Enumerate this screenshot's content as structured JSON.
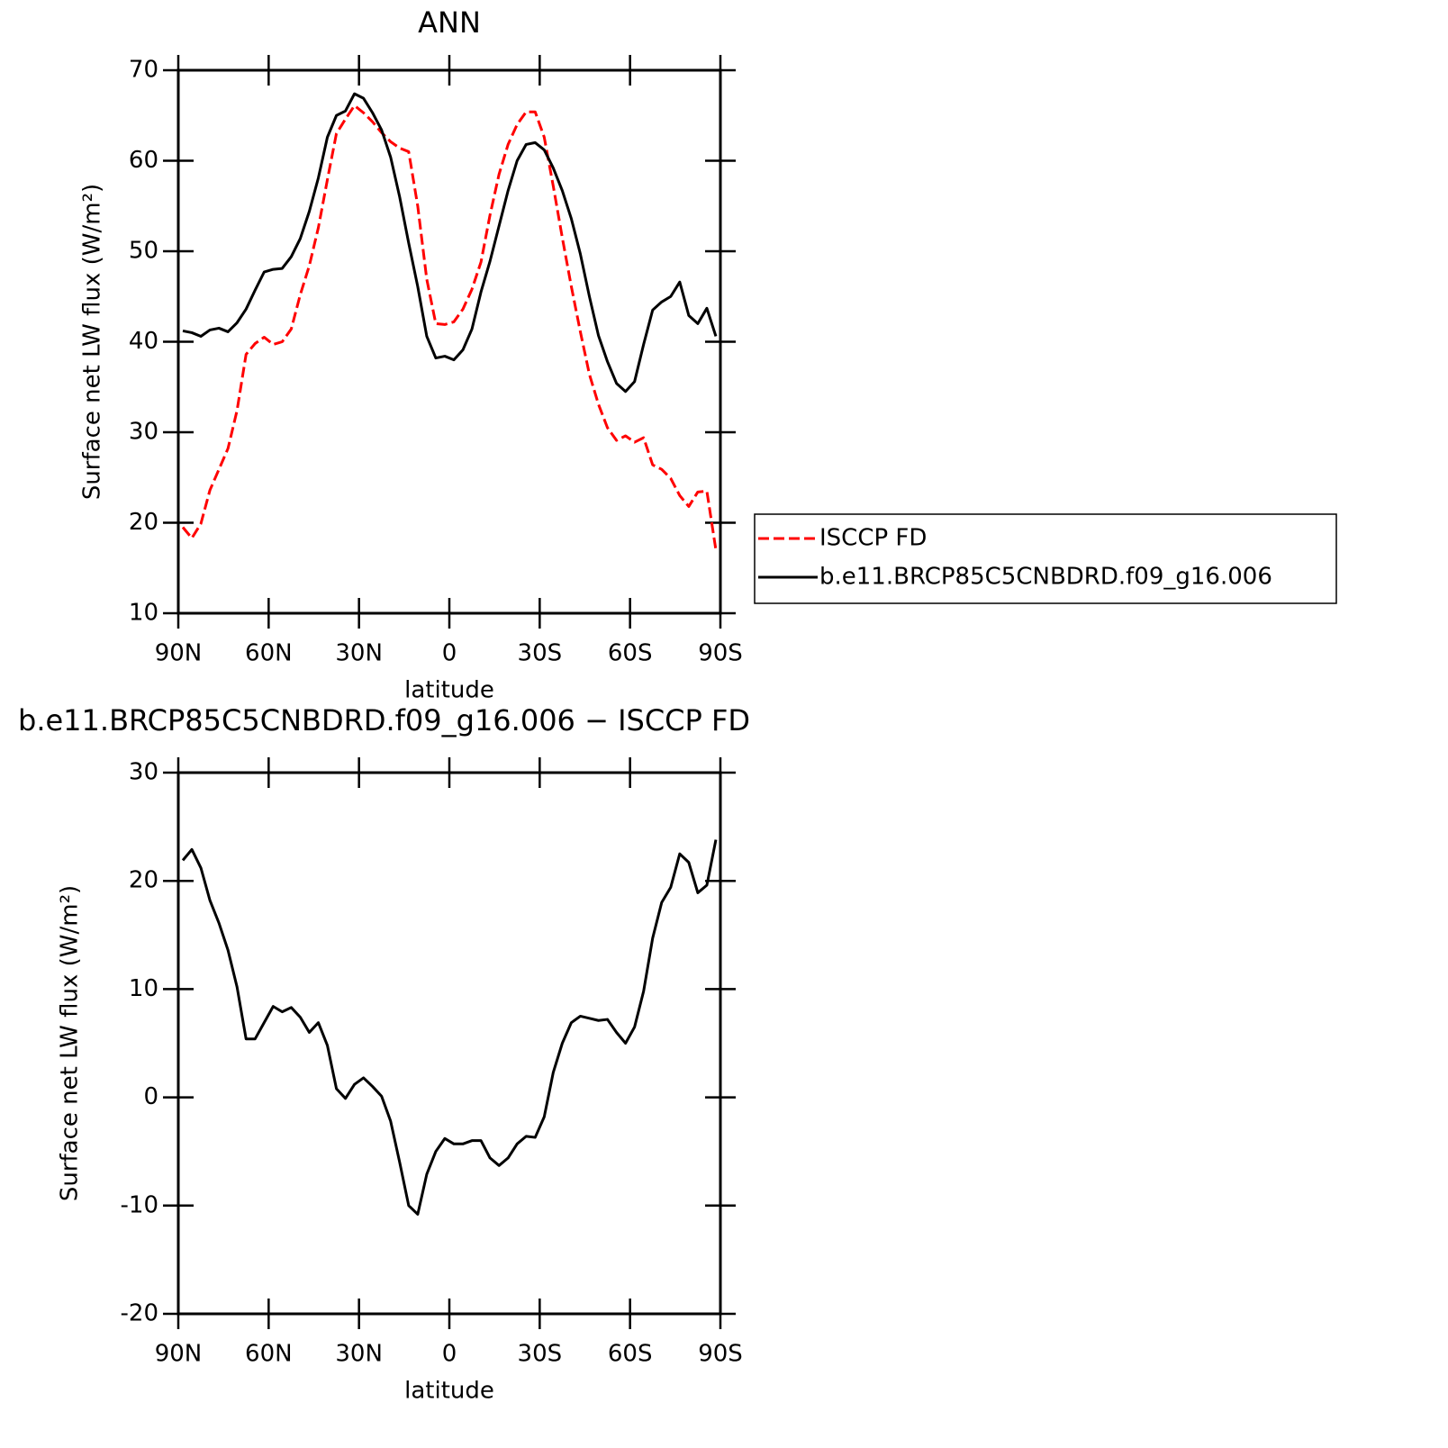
{
  "chart_data": [
    {
      "type": "line",
      "title": "ANN",
      "xlabel": "latitude",
      "ylabel": "Surface net LW flux (W/m²)",
      "x": [
        88.5,
        85.5,
        82.5,
        79.5,
        76.5,
        73.5,
        70.5,
        67.5,
        64.5,
        61.5,
        58.5,
        55.5,
        52.5,
        49.5,
        46.5,
        43.5,
        40.5,
        37.5,
        34.5,
        31.5,
        28.5,
        25.5,
        22.5,
        19.5,
        16.5,
        13.5,
        10.5,
        7.5,
        4.5,
        1.5,
        -1.5,
        -4.5,
        -7.5,
        -10.5,
        -13.5,
        -16.5,
        -19.5,
        -22.5,
        -25.5,
        -28.5,
        -31.5,
        -34.5,
        -37.5,
        -40.5,
        -43.5,
        -46.5,
        -49.5,
        -52.5,
        -55.5,
        -58.5,
        -61.5,
        -64.5,
        -67.5,
        -70.5,
        -73.5,
        -76.5,
        -79.5,
        -82.5,
        -85.5,
        -88.5
      ],
      "series": [
        {
          "name": "ISCCP FD",
          "color": "#ff0000",
          "dash": true,
          "values": [
            19.5,
            18.3,
            19.9,
            23.6,
            25.9,
            28.2,
            32.4,
            38.6,
            39.8,
            40.5,
            39.7,
            40.0,
            41.4,
            45.2,
            48.4,
            52.6,
            57.9,
            63.0,
            64.6,
            66.1,
            65.3,
            64.3,
            63.1,
            62.1,
            61.4,
            61.0,
            55.0,
            46.9,
            42.0,
            41.9,
            42.2,
            43.6,
            45.8,
            48.8,
            54.0,
            58.5,
            61.8,
            64.0,
            65.4,
            65.4,
            62.6,
            57.2,
            51.5,
            46.1,
            41.1,
            36.4,
            33.1,
            30.5,
            29.1,
            29.6,
            28.9,
            29.4,
            26.4,
            25.9,
            24.9,
            23.0,
            21.8,
            23.4,
            23.5,
            17.0
          ]
        },
        {
          "name": "b.e11.BRCP85C5CNBDRD.f09_g16.006",
          "color": "#000000",
          "dash": false,
          "values": [
            41.2,
            41.0,
            40.6,
            41.3,
            41.5,
            41.1,
            42.1,
            43.6,
            45.7,
            47.7,
            48.0,
            48.1,
            49.4,
            51.4,
            54.4,
            58.1,
            62.6,
            65.0,
            65.5,
            67.4,
            66.9,
            65.3,
            63.4,
            60.4,
            56.0,
            50.9,
            46.1,
            40.6,
            38.2,
            38.4,
            38.0,
            39.1,
            41.4,
            45.5,
            48.9,
            52.8,
            56.7,
            60.0,
            61.8,
            62.0,
            61.2,
            59.2,
            56.7,
            53.6,
            49.7,
            45.0,
            40.7,
            37.8,
            35.4,
            34.5,
            35.6,
            39.7,
            43.5,
            44.4,
            45.0,
            46.6,
            42.9,
            42.0,
            43.7,
            40.6
          ]
        }
      ],
      "xlim": [
        90,
        -90
      ],
      "xticks": [
        {
          "value": 90,
          "label": "90N"
        },
        {
          "value": 60,
          "label": "60N"
        },
        {
          "value": 30,
          "label": "30N"
        },
        0,
        {
          "value": -30,
          "label": "30S"
        },
        {
          "value": -60,
          "label": "60S"
        },
        {
          "value": -90,
          "label": "90S"
        }
      ],
      "ylim": [
        10,
        70
      ],
      "yticks": [
        10,
        20,
        30,
        40,
        50,
        60,
        70
      ],
      "legend": "right"
    },
    {
      "type": "line",
      "title": "b.e11.BRCP85C5CNBDRD.f09_g16.006 − ISCCP FD",
      "xlabel": "latitude",
      "ylabel": "Surface net LW flux (W/m²)",
      "x": [
        88.5,
        85.5,
        82.5,
        79.5,
        76.5,
        73.5,
        70.5,
        67.5,
        64.5,
        61.5,
        58.5,
        55.5,
        52.5,
        49.5,
        46.5,
        43.5,
        40.5,
        37.5,
        34.5,
        31.5,
        28.5,
        25.5,
        22.5,
        19.5,
        16.5,
        13.5,
        10.5,
        7.5,
        4.5,
        1.5,
        -1.5,
        -4.5,
        -7.5,
        -10.5,
        -13.5,
        -16.5,
        -19.5,
        -22.5,
        -25.5,
        -28.5,
        -31.5,
        -34.5,
        -37.5,
        -40.5,
        -43.5,
        -46.5,
        -49.5,
        -52.5,
        -55.5,
        -58.5,
        -61.5,
        -64.5,
        -67.5,
        -70.5,
        -73.5,
        -76.5,
        -79.5,
        -82.5,
        -85.5,
        -88.5
      ],
      "series": [
        {
          "color": "#000000",
          "dash": false,
          "values": [
            21.9,
            22.9,
            21.2,
            18.2,
            16.1,
            13.6,
            10.2,
            5.4,
            5.4,
            6.9,
            8.4,
            7.9,
            8.3,
            7.4,
            6.0,
            6.9,
            4.8,
            0.8,
            -0.1,
            1.2,
            1.8,
            1.0,
            0.1,
            -2.2,
            -6.0,
            -10.0,
            -10.8,
            -7.1,
            -5.0,
            -3.8,
            -4.3,
            -4.3,
            -4.0,
            -4.0,
            -5.6,
            -6.3,
            -5.6,
            -4.3,
            -3.6,
            -3.7,
            -1.8,
            2.3,
            5.0,
            6.9,
            7.5,
            7.3,
            7.1,
            7.2,
            6.0,
            5.0,
            6.5,
            9.8,
            14.7,
            18.0,
            19.4,
            22.5,
            21.7,
            18.9,
            19.6,
            23.8
          ]
        }
      ],
      "xlim": [
        90,
        -90
      ],
      "xticks": [
        {
          "value": 90,
          "label": "90N"
        },
        {
          "value": 60,
          "label": "60N"
        },
        {
          "value": 30,
          "label": "30N"
        },
        0,
        {
          "value": -30,
          "label": "30S"
        },
        {
          "value": -60,
          "label": "60S"
        },
        {
          "value": -90,
          "label": "90S"
        }
      ],
      "ylim": [
        -20,
        30
      ],
      "yticks": [
        -20,
        -10,
        0,
        10,
        20,
        30
      ]
    }
  ]
}
